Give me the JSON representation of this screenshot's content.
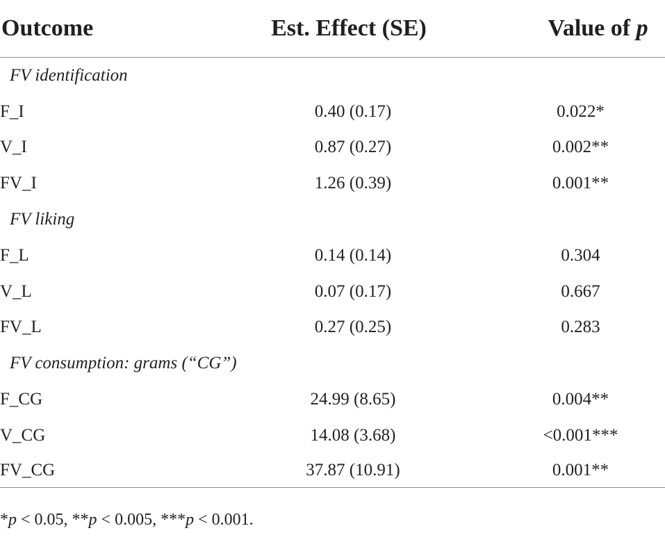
{
  "header": {
    "outcome": "Outcome",
    "effect": "Est. Effect (SE)",
    "p_prefix": "Value of ",
    "p_symbol": "p"
  },
  "sections": [
    {
      "title": "FV identification",
      "rows": [
        {
          "outcome": "F_I",
          "effect": "0.40 (0.17)",
          "p": "0.022*"
        },
        {
          "outcome": "V_I",
          "effect": "0.87 (0.27)",
          "p": "0.002**"
        },
        {
          "outcome": "FV_I",
          "effect": "1.26 (0.39)",
          "p": "0.001**"
        }
      ]
    },
    {
      "title": "FV liking",
      "rows": [
        {
          "outcome": "F_L",
          "effect": "0.14 (0.14)",
          "p": "0.304"
        },
        {
          "outcome": "V_L",
          "effect": "0.07 (0.17)",
          "p": "0.667"
        },
        {
          "outcome": "FV_L",
          "effect": "0.27 (0.25)",
          "p": "0.283"
        }
      ]
    },
    {
      "title": "FV consumption: grams (“CG”)",
      "rows": [
        {
          "outcome": "F_CG",
          "effect": "24.99 (8.65)",
          "p": "0.004**"
        },
        {
          "outcome": "V_CG",
          "effect": "14.08 (3.68)",
          "p": "<0.001***"
        },
        {
          "outcome": "FV_CG",
          "effect": "37.87 (10.91)",
          "p": "0.001**"
        }
      ]
    }
  ],
  "footnote": {
    "parts": [
      {
        "star": "*",
        "p": "p",
        "rest": " < 0.05, "
      },
      {
        "star": "**",
        "p": "p",
        "rest": " < 0.005, "
      },
      {
        "star": "***",
        "p": "p",
        "rest": " < 0.001."
      }
    ]
  }
}
